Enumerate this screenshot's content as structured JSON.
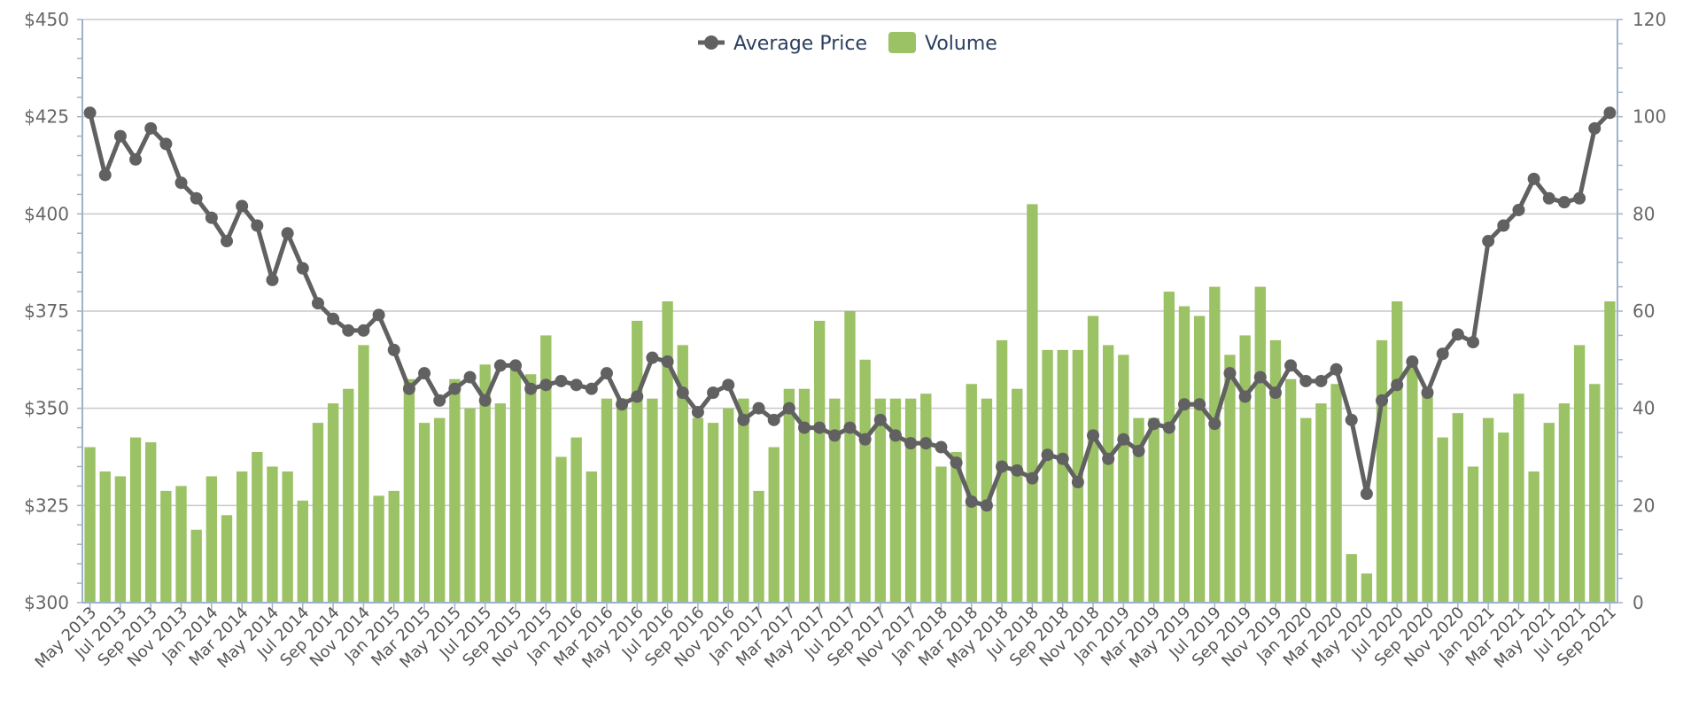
{
  "chart_data": {
    "type": "bar-line-combo",
    "title": "",
    "categories": [
      "May 2013",
      "Jun 2013",
      "Jul 2013",
      "Aug 2013",
      "Sep 2013",
      "Oct 2013",
      "Nov 2013",
      "Dec 2013",
      "Jan 2014",
      "Feb 2014",
      "Mar 2014",
      "Apr 2014",
      "May 2014",
      "Jun 2014",
      "Jul 2014",
      "Aug 2014",
      "Sep 2014",
      "Oct 2014",
      "Nov 2014",
      "Dec 2014",
      "Jan 2015",
      "Feb 2015",
      "Mar 2015",
      "Apr 2015",
      "May 2015",
      "Jun 2015",
      "Jul 2015",
      "Aug 2015",
      "Sep 2015",
      "Oct 2015",
      "Nov 2015",
      "Dec 2015",
      "Jan 2016",
      "Feb 2016",
      "Mar 2016",
      "Apr 2016",
      "May 2016",
      "Jun 2016",
      "Jul 2016",
      "Aug 2016",
      "Sep 2016",
      "Oct 2016",
      "Nov 2016",
      "Dec 2016",
      "Jan 2017",
      "Feb 2017",
      "Mar 2017",
      "Apr 2017",
      "May 2017",
      "Jun 2017",
      "Jul 2017",
      "Aug 2017",
      "Sep 2017",
      "Oct 2017",
      "Nov 2017",
      "Dec 2017",
      "Jan 2018",
      "Feb 2018",
      "Mar 2018",
      "Apr 2018",
      "May 2018",
      "Jun 2018",
      "Jul 2018",
      "Aug 2018",
      "Sep 2018",
      "Oct 2018",
      "Nov 2018",
      "Dec 2018",
      "Jan 2019",
      "Feb 2019",
      "Mar 2019",
      "Apr 2019",
      "May 2019",
      "Jun 2019",
      "Jul 2019",
      "Aug 2019",
      "Sep 2019",
      "Oct 2019",
      "Nov 2019",
      "Dec 2019",
      "Jan 2020",
      "Feb 2020",
      "Mar 2020",
      "Apr 2020",
      "May 2020",
      "Jun 2020",
      "Jul 2020",
      "Aug 2020",
      "Sep 2020",
      "Oct 2020",
      "Nov 2020",
      "Dec 2020",
      "Jan 2021",
      "Feb 2021",
      "Mar 2021",
      "Apr 2021",
      "May 2021",
      "Jun 2021",
      "Jul 2021",
      "Aug 2021",
      "Sep 2021"
    ],
    "x_tick_labels": [
      "May 2013",
      "Jul 2013",
      "Sep 2013",
      "Nov 2013",
      "Jan 2014",
      "Mar 2014",
      "May 2014",
      "Jul 2014",
      "Sep 2014",
      "Nov 2014",
      "Jan 2015",
      "Mar 2015",
      "May 2015",
      "Jul 2015",
      "Sep 2015",
      "Nov 2015",
      "Jan 2016",
      "Mar 2016",
      "May 2016",
      "Jul 2016",
      "Sep 2016",
      "Nov 2016",
      "Jan 2017",
      "Mar 2017",
      "May 2017",
      "Jul 2017",
      "Sep 2017",
      "Nov 2017",
      "Jan 2018",
      "Mar 2018",
      "May 2018",
      "Jul 2018",
      "Sep 2018",
      "Nov 2018",
      "Jan 2019",
      "Mar 2019",
      "May 2019",
      "Jul 2019",
      "Sep 2019",
      "Nov 2019",
      "Jan 2020",
      "Mar 2020",
      "May 2020",
      "Jul 2020",
      "Sep 2020",
      "Nov 2020",
      "Jan 2021",
      "Mar 2021",
      "May 2021",
      "Jul 2021",
      "Sep 2021"
    ],
    "series": [
      {
        "name": "Average Price",
        "type": "line",
        "axis": "left",
        "color": "#616161",
        "values": [
          426,
          410,
          420,
          414,
          422,
          418,
          408,
          404,
          399,
          393,
          402,
          397,
          383,
          395,
          386,
          377,
          373,
          370,
          370,
          374,
          365,
          355,
          359,
          352,
          355,
          358,
          352,
          361,
          361,
          355,
          356,
          357,
          356,
          355,
          359,
          351,
          353,
          363,
          362,
          354,
          349,
          354,
          356,
          347,
          350,
          347,
          350,
          345,
          345,
          343,
          345,
          342,
          347,
          343,
          341,
          341,
          340,
          336,
          326,
          325,
          335,
          334,
          332,
          338,
          337,
          331,
          343,
          337,
          342,
          339,
          346,
          345,
          351,
          351,
          346,
          359,
          353,
          358,
          354,
          361,
          357,
          357,
          360,
          347,
          328,
          352,
          356,
          362,
          354,
          364,
          369,
          367,
          393,
          397,
          401,
          409,
          404,
          403,
          404,
          422,
          426
        ]
      },
      {
        "name": "Volume",
        "type": "bar",
        "axis": "right",
        "color": "#9bc265",
        "values": [
          32,
          27,
          26,
          34,
          33,
          23,
          24,
          15,
          26,
          18,
          27,
          31,
          28,
          27,
          21,
          37,
          41,
          44,
          53,
          22,
          23,
          46,
          37,
          38,
          46,
          40,
          49,
          41,
          49,
          47,
          55,
          30,
          34,
          27,
          42,
          42,
          58,
          42,
          62,
          53,
          38,
          37,
          40,
          42,
          23,
          32,
          44,
          44,
          58,
          42,
          60,
          50,
          42,
          42,
          42,
          43,
          28,
          31,
          45,
          42,
          54,
          44,
          82,
          52,
          52,
          52,
          59,
          53,
          51,
          38,
          38,
          64,
          61,
          59,
          65,
          51,
          55,
          65,
          54,
          46,
          38,
          41,
          45,
          10,
          6,
          54,
          62,
          50,
          44,
          34,
          39,
          28,
          38,
          35,
          43,
          27,
          37,
          41,
          53,
          45,
          62
        ]
      }
    ],
    "y_left": {
      "min": 300,
      "max": 450,
      "ticks": [
        300,
        325,
        350,
        375,
        400,
        425,
        450
      ],
      "tick_labels": [
        "$300",
        "$325",
        "$350",
        "$375",
        "$400",
        "$425",
        "$450"
      ]
    },
    "y_right": {
      "min": 0,
      "max": 120,
      "ticks": [
        0,
        20,
        40,
        60,
        80,
        100,
        120
      ],
      "tick_labels": [
        "0",
        "20",
        "40",
        "60",
        "80",
        "100",
        "120"
      ]
    },
    "grid": "horizontal",
    "legend_position": "top-center",
    "xlabel": "",
    "ylabel": ""
  }
}
